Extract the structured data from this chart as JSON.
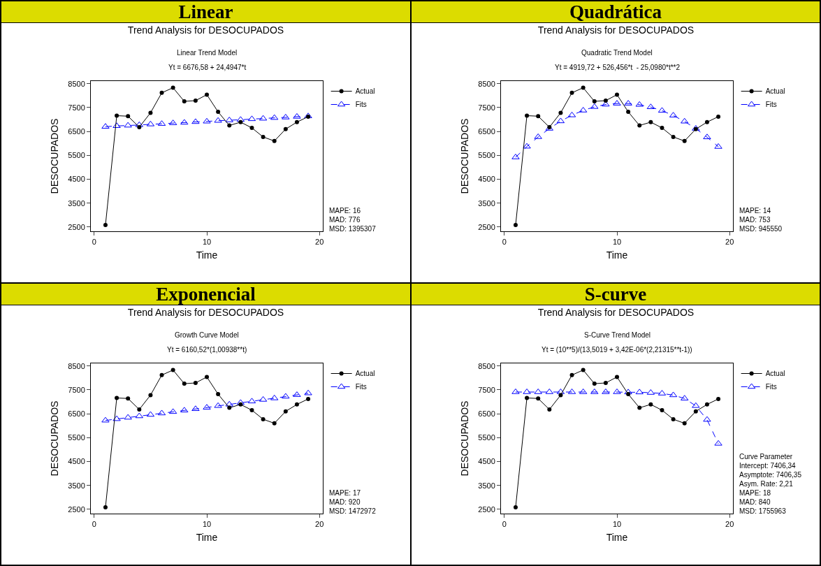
{
  "chart_data": [
    {
      "type": "line",
      "title": "Linear",
      "subtitle": "Trend Analysis for DESOCUPADOS",
      "xlabel": "Time",
      "ylabel": "DESOCUPADOS",
      "annotations": [
        "Linear Trend Model",
        "Yt = 6676,58 + 24,4947*t",
        "MAPE: 16",
        "MAD: 776",
        "MSD: 1395307"
      ],
      "x": [
        1,
        2,
        3,
        4,
        5,
        6,
        7,
        8,
        9,
        10,
        11,
        12,
        13,
        14,
        15,
        16,
        17,
        18,
        19
      ],
      "series": [
        {
          "name": "Actual",
          "color": "#000000",
          "marker": "circle",
          "line_style": "solid",
          "values": [
            2580,
            7160,
            7140,
            6680,
            7280,
            8120,
            8330,
            7760,
            7790,
            8040,
            7320,
            6750,
            6890,
            6650,
            6270,
            6100,
            6600,
            6890,
            7120
          ]
        },
        {
          "name": "Fits",
          "color": "#0000ff",
          "marker": "triangle",
          "line_style": "dashed",
          "values": [
            6700,
            6730,
            6750,
            6770,
            6800,
            6820,
            6850,
            6870,
            6900,
            6920,
            6950,
            6970,
            6990,
            7020,
            7040,
            7070,
            7090,
            7120,
            7140
          ]
        }
      ],
      "xlim": [
        -0.3,
        20.3
      ],
      "xticks": [
        0,
        10,
        20
      ],
      "ylim": [
        2320,
        8610
      ],
      "yticks": [
        2500,
        3500,
        4500,
        5500,
        6500,
        7500,
        8500
      ],
      "grid": false,
      "legend": "top right"
    },
    {
      "type": "line",
      "title": "Quadrática",
      "subtitle": "Trend Analysis for DESOCUPADOS",
      "xlabel": "Time",
      "ylabel": "DESOCUPADOS",
      "annotations": [
        "Quadratic Trend Model",
        "Yt = 4919,72 + 526,456*t  - 25,0980*t**2",
        "MAPE: 14",
        "MAD: 753",
        "MSD: 945550"
      ],
      "x": [
        1,
        2,
        3,
        4,
        5,
        6,
        7,
        8,
        9,
        10,
        11,
        12,
        13,
        14,
        15,
        16,
        17,
        18,
        19
      ],
      "series": [
        {
          "name": "Actual",
          "color": "#000000",
          "marker": "circle",
          "line_style": "solid",
          "values": [
            2580,
            7160,
            7140,
            6680,
            7280,
            8120,
            8330,
            7760,
            7790,
            8040,
            7320,
            6750,
            6890,
            6650,
            6270,
            6100,
            6600,
            6890,
            7120
          ]
        },
        {
          "name": "Fits",
          "color": "#0000ff",
          "marker": "triangle",
          "line_style": "dashed",
          "values": [
            5420,
            5870,
            6270,
            6620,
            6930,
            7180,
            7380,
            7530,
            7630,
            7670,
            7670,
            7620,
            7520,
            7370,
            7170,
            6920,
            6620,
            6260,
            5860
          ]
        }
      ],
      "xlim": [
        -0.3,
        20.3
      ],
      "xticks": [
        0,
        10,
        20
      ],
      "ylim": [
        2320,
        8610
      ],
      "yticks": [
        2500,
        3500,
        4500,
        5500,
        6500,
        7500,
        8500
      ],
      "grid": false,
      "legend": "top right"
    },
    {
      "type": "line",
      "title": "Exponencial",
      "subtitle": "Trend Analysis for DESOCUPADOS",
      "xlabel": "Time",
      "ylabel": "DESOCUPADOS",
      "annotations": [
        "Growth Curve Model",
        "Yt = 6160,52*(1,00938**t)",
        "MAPE: 17",
        "MAD: 920",
        "MSD: 1472972"
      ],
      "x": [
        1,
        2,
        3,
        4,
        5,
        6,
        7,
        8,
        9,
        10,
        11,
        12,
        13,
        14,
        15,
        16,
        17,
        18,
        19
      ],
      "series": [
        {
          "name": "Actual",
          "color": "#000000",
          "marker": "circle",
          "line_style": "solid",
          "values": [
            2580,
            7160,
            7140,
            6680,
            7280,
            8120,
            8330,
            7760,
            7790,
            8040,
            7320,
            6750,
            6890,
            6650,
            6270,
            6100,
            6600,
            6890,
            7120
          ]
        },
        {
          "name": "Fits",
          "color": "#0000ff",
          "marker": "triangle",
          "line_style": "dashed",
          "values": [
            6220,
            6280,
            6340,
            6400,
            6460,
            6520,
            6580,
            6640,
            6700,
            6760,
            6830,
            6890,
            6960,
            7020,
            7090,
            7150,
            7220,
            7290,
            7360
          ]
        }
      ],
      "xlim": [
        -0.3,
        20.3
      ],
      "xticks": [
        0,
        10,
        20
      ],
      "ylim": [
        2320,
        8610
      ],
      "yticks": [
        2500,
        3500,
        4500,
        5500,
        6500,
        7500,
        8500
      ],
      "grid": false,
      "legend": "top right"
    },
    {
      "type": "line",
      "title": "S-curve",
      "subtitle": "Trend Analysis for DESOCUPADOS",
      "xlabel": "Time",
      "ylabel": "DESOCUPADOS",
      "annotations": [
        "S-Curve Trend Model",
        "Yt = (10**5)/(13,5019 + 3,42E-06*(2,21315**t-1))",
        "Curve Parameter",
        "Intercept: 7406,34",
        "Asymptote: 7406,35",
        "Asym. Rate: 2,21",
        "MAPE: 18",
        "MAD: 840",
        "MSD: 1755963"
      ],
      "x": [
        1,
        2,
        3,
        4,
        5,
        6,
        7,
        8,
        9,
        10,
        11,
        12,
        13,
        14,
        15,
        16,
        17,
        18,
        19
      ],
      "series": [
        {
          "name": "Actual",
          "color": "#000000",
          "marker": "circle",
          "line_style": "solid",
          "values": [
            2580,
            7160,
            7140,
            6680,
            7280,
            8120,
            8330,
            7760,
            7790,
            8040,
            7320,
            6750,
            6890,
            6650,
            6270,
            6100,
            6600,
            6890,
            7120
          ]
        },
        {
          "name": "Fits",
          "color": "#0000ff",
          "marker": "triangle",
          "line_style": "dashed",
          "values": [
            7410,
            7410,
            7410,
            7410,
            7410,
            7410,
            7410,
            7410,
            7410,
            7410,
            7400,
            7400,
            7380,
            7350,
            7280,
            7140,
            6830,
            6250,
            5250
          ]
        }
      ],
      "xlim": [
        -0.3,
        20.3
      ],
      "xticks": [
        0,
        10,
        20
      ],
      "ylim": [
        2320,
        8610
      ],
      "yticks": [
        2500,
        3500,
        4500,
        5500,
        6500,
        7500,
        8500
      ],
      "grid": false,
      "legend": "top right"
    }
  ]
}
